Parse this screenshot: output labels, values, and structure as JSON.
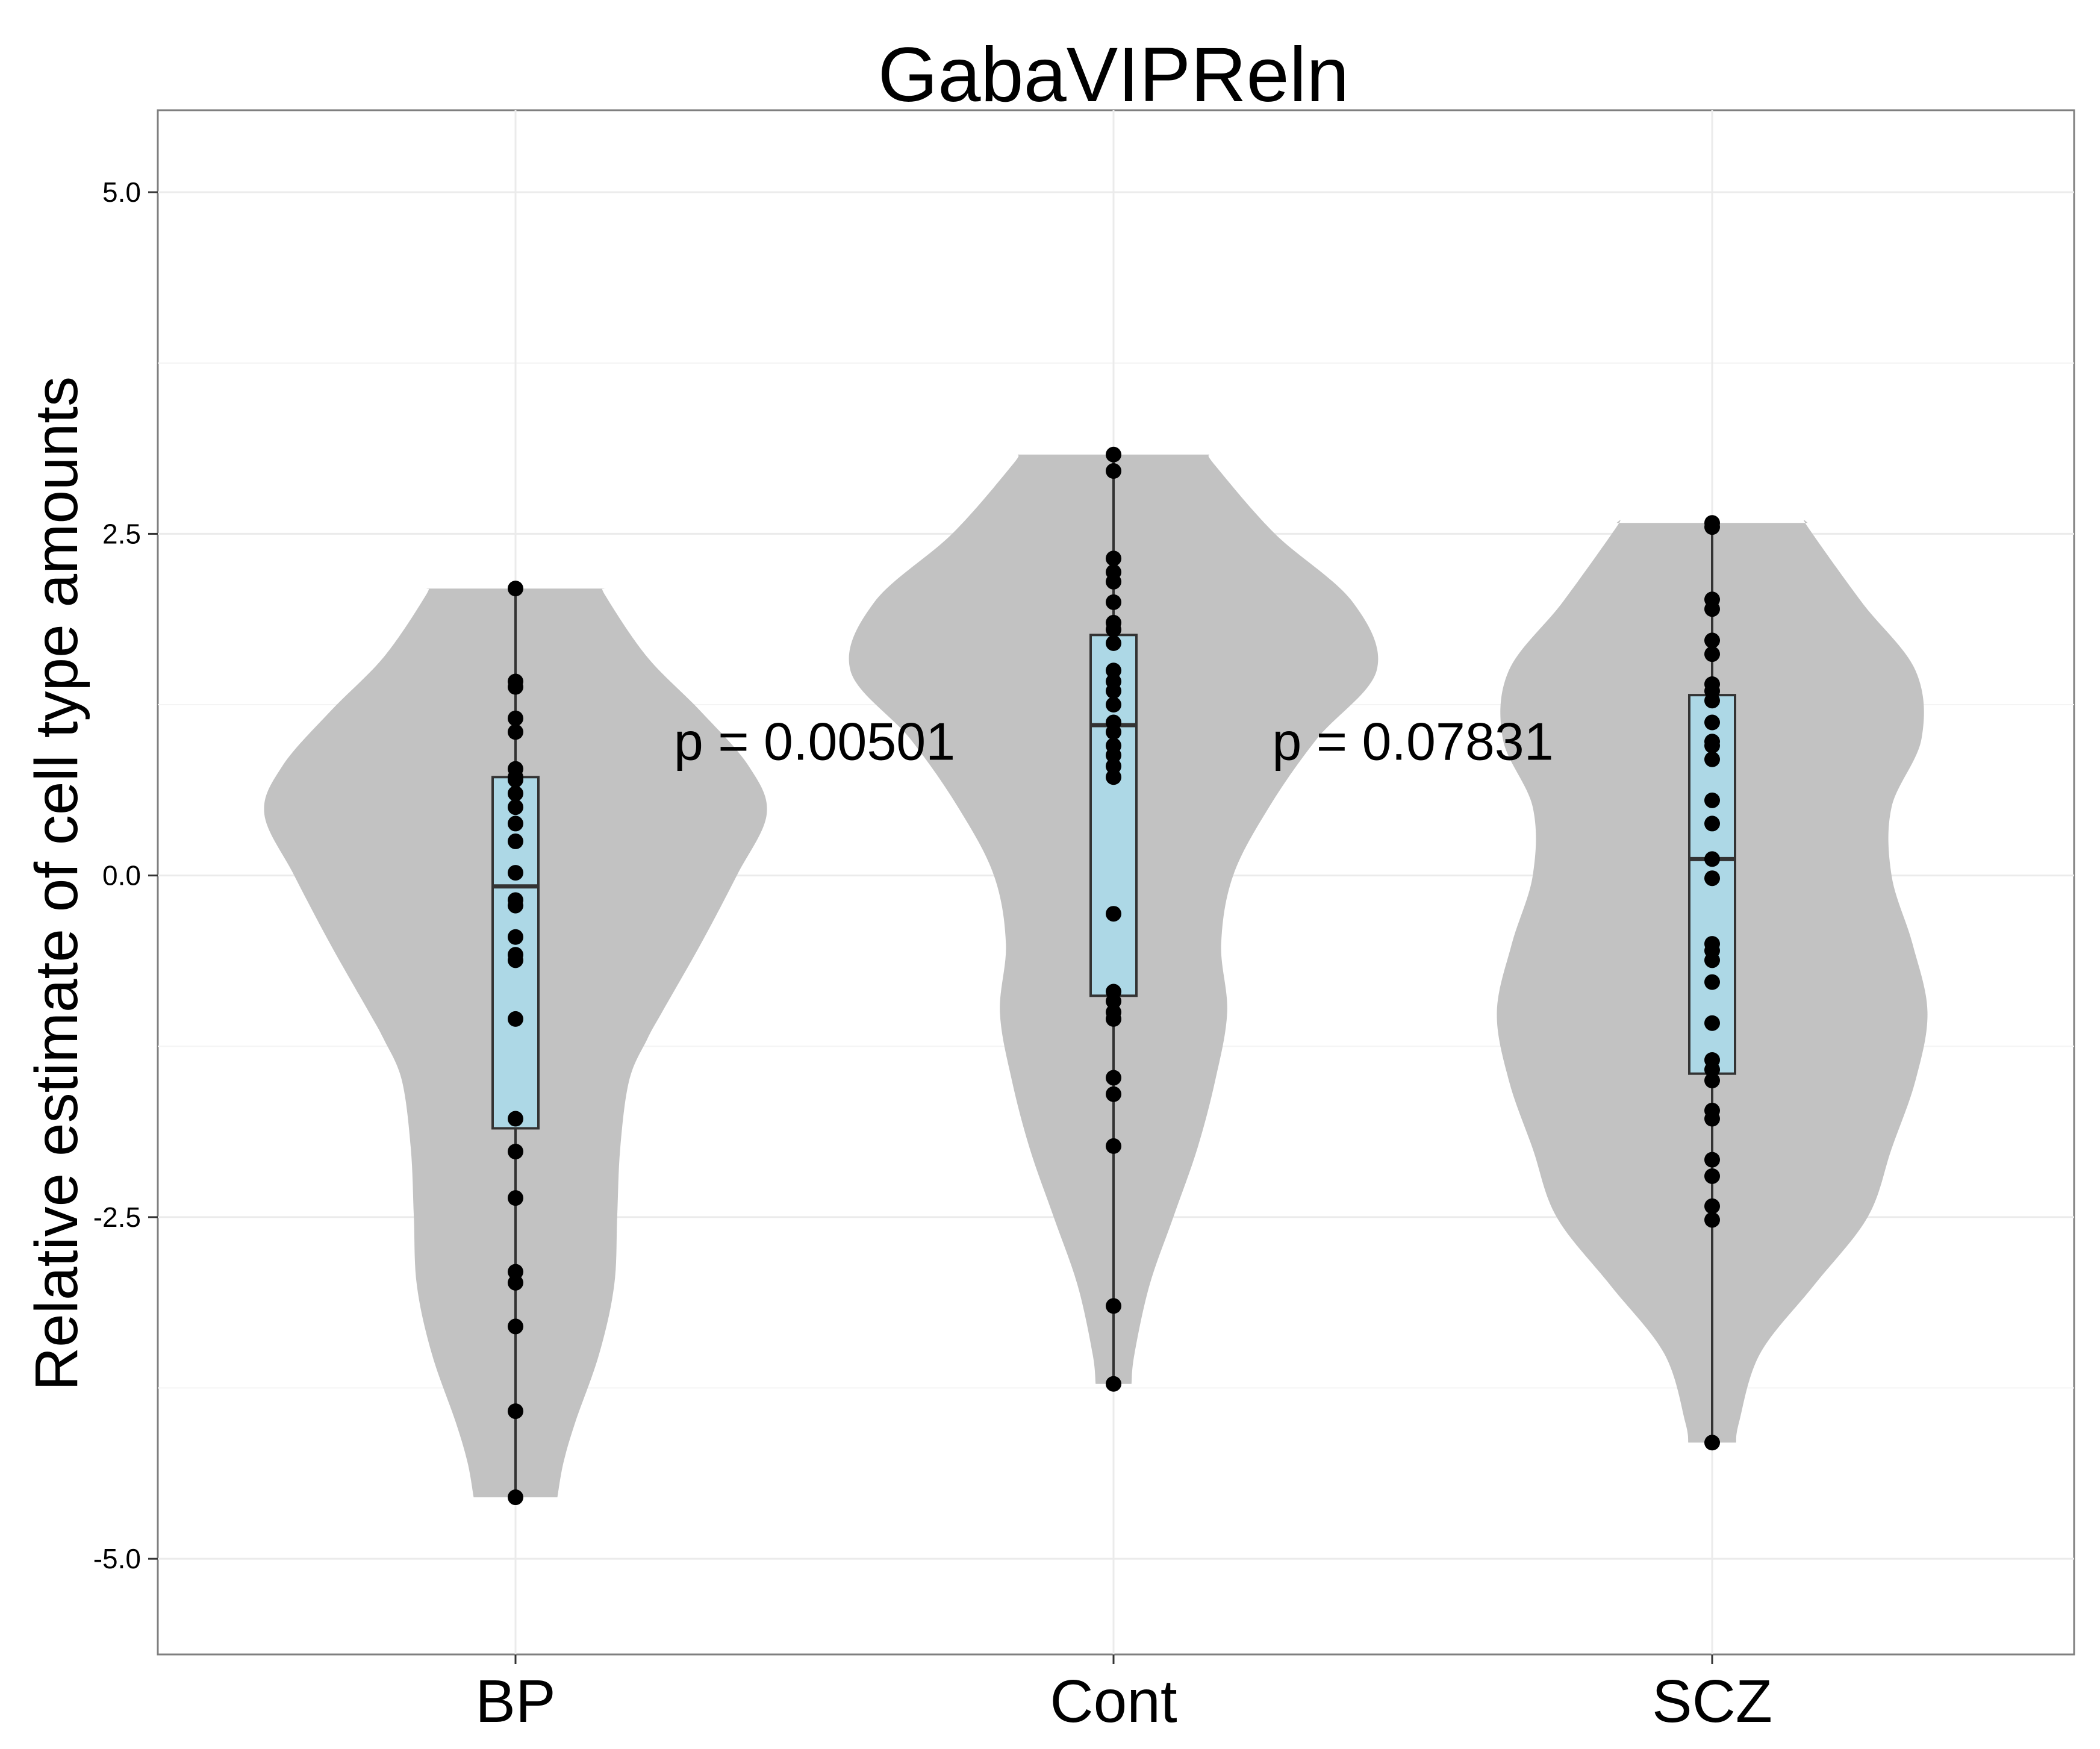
{
  "chart_data": {
    "type": "violin",
    "title": "GabaVIPReln",
    "xlabel": "",
    "ylabel": "Relative estimate of cell type amounts",
    "ylim": [
      -5.7,
      5.6
    ],
    "yticks": [
      5.0,
      2.5,
      0.0,
      -2.5,
      -5.0
    ],
    "ytick_labels": [
      "5.0",
      "2.5",
      "0.0",
      "-2.5",
      "-5.0"
    ],
    "grid": true,
    "colors": {
      "violin": "#c2c2c2",
      "box": "#add8e6",
      "points": "#000000"
    },
    "categories": [
      "BP",
      "Cont",
      "SCZ"
    ],
    "groups": [
      {
        "name": "BP",
        "box": {
          "min": -4.55,
          "q1": -1.85,
          "median": -0.08,
          "q3": 0.72,
          "max": 2.1
        },
        "points": [
          2.1,
          1.42,
          1.38,
          1.15,
          1.05,
          0.78,
          0.72,
          0.7,
          0.6,
          0.5,
          0.38,
          0.25,
          0.02,
          -0.18,
          -0.22,
          -0.45,
          -0.58,
          -0.62,
          -1.05,
          -1.78,
          -2.02,
          -2.36,
          -2.9,
          -2.98,
          -3.3,
          -3.92,
          -4.55
        ],
        "violin": [
          [
            -4.55,
            0.07
          ],
          [
            -4.3,
            0.08
          ],
          [
            -4.0,
            0.1
          ],
          [
            -3.5,
            0.14
          ],
          [
            -3.0,
            0.165
          ],
          [
            -2.5,
            0.17
          ],
          [
            -2.0,
            0.175
          ],
          [
            -1.5,
            0.19
          ],
          [
            -1.2,
            0.22
          ],
          [
            -1.0,
            0.245
          ],
          [
            -0.5,
            0.31
          ],
          [
            0.0,
            0.37
          ],
          [
            0.45,
            0.42
          ],
          [
            0.8,
            0.39
          ],
          [
            1.2,
            0.31
          ],
          [
            1.6,
            0.22
          ],
          [
            2.05,
            0.15
          ],
          [
            2.1,
            0.15
          ]
        ]
      },
      {
        "name": "Cont",
        "box": {
          "min": -3.72,
          "q1": -0.88,
          "median": 1.1,
          "q3": 1.76,
          "max": 3.08
        },
        "points": [
          3.08,
          2.96,
          2.32,
          2.22,
          2.15,
          2.0,
          1.85,
          1.8,
          1.7,
          1.5,
          1.42,
          1.35,
          1.25,
          1.12,
          1.05,
          0.95,
          0.88,
          0.8,
          0.72,
          -0.28,
          -0.85,
          -0.92,
          -1.0,
          -1.05,
          -1.48,
          -1.6,
          -1.98,
          -3.15,
          -3.72
        ],
        "violin": [
          [
            -3.72,
            0.03
          ],
          [
            -3.5,
            0.035
          ],
          [
            -3.0,
            0.06
          ],
          [
            -2.5,
            0.1
          ],
          [
            -2.0,
            0.14
          ],
          [
            -1.5,
            0.17
          ],
          [
            -1.0,
            0.19
          ],
          [
            -0.5,
            0.18
          ],
          [
            0.0,
            0.2
          ],
          [
            0.5,
            0.26
          ],
          [
            1.0,
            0.34
          ],
          [
            1.5,
            0.44
          ],
          [
            2.0,
            0.4
          ],
          [
            2.5,
            0.27
          ],
          [
            3.0,
            0.17
          ],
          [
            3.08,
            0.16
          ]
        ]
      },
      {
        "name": "SCZ",
        "box": {
          "min": -4.15,
          "q1": -1.45,
          "median": 0.12,
          "q3": 1.32,
          "max": 2.58
        },
        "points": [
          2.58,
          2.55,
          2.02,
          1.95,
          1.72,
          1.62,
          1.4,
          1.35,
          1.28,
          1.12,
          0.98,
          0.95,
          0.85,
          0.55,
          0.38,
          0.12,
          -0.02,
          -0.5,
          -0.55,
          -0.62,
          -0.78,
          -1.08,
          -1.35,
          -1.42,
          -1.5,
          -1.72,
          -1.78,
          -2.08,
          -2.2,
          -2.42,
          -2.52,
          -4.15
        ],
        "violin": [
          [
            -4.15,
            0.04
          ],
          [
            -4.0,
            0.045
          ],
          [
            -3.5,
            0.08
          ],
          [
            -3.0,
            0.17
          ],
          [
            -2.5,
            0.26
          ],
          [
            -2.0,
            0.3
          ],
          [
            -1.5,
            0.34
          ],
          [
            -1.0,
            0.36
          ],
          [
            -0.5,
            0.335
          ],
          [
            0.0,
            0.3
          ],
          [
            0.5,
            0.3
          ],
          [
            1.0,
            0.35
          ],
          [
            1.5,
            0.34
          ],
          [
            2.0,
            0.25
          ],
          [
            2.55,
            0.16
          ],
          [
            2.58,
            0.16
          ]
        ]
      }
    ],
    "annotations": [
      {
        "text": "p = 0.00501",
        "x": 0.5,
        "y": 0.98
      },
      {
        "text": "p = 0.07831",
        "x": 1.5,
        "y": 0.98
      }
    ]
  }
}
